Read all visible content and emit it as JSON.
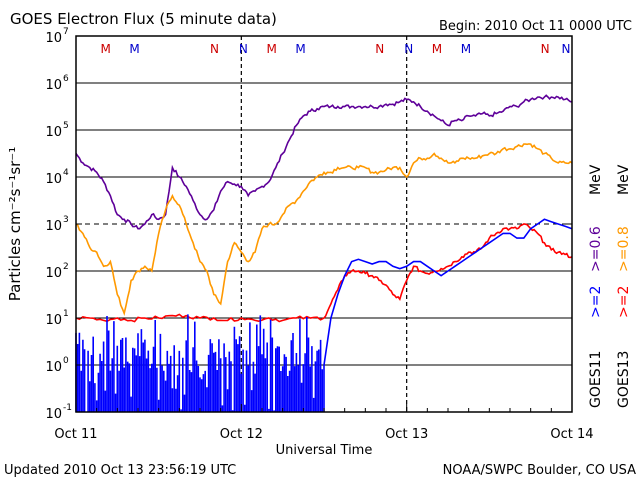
{
  "chart_data": {
    "type": "line",
    "title": "GOES Electron Flux (5 minute data)",
    "begin_label": "Begin: 2010 Oct 11 0000 UTC",
    "xlabel": "Universal Time",
    "ylabel": "Particles cm⁻²s⁻¹sr⁻¹",
    "updated": "Updated 2010 Oct 13 23:56:19 UTC",
    "credit": "NOAA/SWPC Boulder, CO USA",
    "x_unit": "hours since 2010 Oct 11 00:00 UTC",
    "xlim": [
      0,
      72
    ],
    "y_scale": "log",
    "ylim_exp": [
      -1,
      7
    ],
    "x_ticks": [
      {
        "x": 0,
        "label": "Oct 11"
      },
      {
        "x": 24,
        "label": "Oct 12"
      },
      {
        "x": 48,
        "label": "Oct 13"
      },
      {
        "x": 72,
        "label": "Oct 14"
      }
    ],
    "y_ticks": [
      {
        "exp": 7,
        "base": "10",
        "sup": "7"
      },
      {
        "exp": 6,
        "base": "10",
        "sup": "6"
      },
      {
        "exp": 5,
        "base": "10",
        "sup": "5"
      },
      {
        "exp": 4,
        "base": "10",
        "sup": "4"
      },
      {
        "exp": 3,
        "base": "10",
        "sup": "3"
      },
      {
        "exp": 2,
        "base": "10",
        "sup": "2"
      },
      {
        "exp": 1,
        "base": "10",
        "sup": "1"
      },
      {
        "exp": 0,
        "base": "10",
        "sup": "0"
      },
      {
        "exp": -1,
        "base": "10",
        "sup": "-1"
      }
    ],
    "threshold_exp": 3,
    "markers": [
      {
        "x": 4.3,
        "label": "M",
        "color": "#cc0000"
      },
      {
        "x": 8.5,
        "label": "M",
        "color": "#0000cc"
      },
      {
        "x": 20.1,
        "label": "N",
        "color": "#cc0000"
      },
      {
        "x": 24.3,
        "label": "N",
        "color": "#0000cc"
      },
      {
        "x": 28.4,
        "label": "M",
        "color": "#cc0000"
      },
      {
        "x": 32.6,
        "label": "M",
        "color": "#0000cc"
      },
      {
        "x": 44.1,
        "label": "N",
        "color": "#cc0000"
      },
      {
        "x": 48.3,
        "label": "N",
        "color": "#0000cc"
      },
      {
        "x": 52.4,
        "label": "M",
        "color": "#cc0000"
      },
      {
        "x": 56.6,
        "label": "M",
        "color": "#0000cc"
      },
      {
        "x": 68.1,
        "label": "N",
        "color": "#cc0000"
      },
      {
        "x": 72.2,
        "label": "N",
        "color": "#0000cc"
      }
    ],
    "legend": [
      {
        "sat": "GOES11",
        "energy": ">=2",
        "color": "#0000ff"
      },
      {
        "sat": "GOES13",
        "energy": ">=2",
        "color": "#ff0000"
      },
      {
        "sat": "",
        "energy": ">=0.6",
        "color": "#5e0099"
      },
      {
        "sat": "",
        "energy": ">=0.8",
        "color": "#ff9900"
      },
      {
        "sat": "",
        "energy": "MeV",
        "color": "#000000"
      },
      {
        "sat": "",
        "energy": "MeV",
        "color": "#000000"
      }
    ],
    "series": [
      {
        "name": "GOES13 >=0.6 MeV",
        "color": "#5e0099",
        "x": [
          0,
          1,
          2,
          3,
          4,
          5,
          6,
          7,
          8,
          9,
          10,
          11,
          12,
          13,
          14,
          15,
          16,
          17,
          18,
          19,
          20,
          21,
          22,
          23,
          24,
          25,
          26,
          27,
          28,
          29,
          30,
          31,
          32,
          33,
          34,
          35,
          36,
          37,
          38,
          39,
          40,
          41,
          42,
          43,
          44,
          45,
          46,
          47,
          48,
          49,
          50,
          51,
          52,
          53,
          54,
          55,
          56,
          57,
          58,
          59,
          60,
          61,
          62,
          63,
          64,
          65,
          66,
          67,
          68,
          69,
          70,
          71,
          72
        ],
        "y_exp": [
          4.5,
          4.3,
          4.2,
          4.1,
          3.9,
          3.6,
          3.2,
          3.1,
          3.0,
          2.9,
          3.0,
          3.2,
          3.1,
          3.2,
          4.2,
          4.0,
          3.8,
          3.5,
          3.2,
          3.1,
          3.3,
          3.7,
          3.9,
          3.85,
          3.8,
          3.6,
          3.7,
          3.8,
          3.9,
          4.2,
          4.5,
          4.8,
          5.1,
          5.3,
          5.4,
          5.45,
          5.5,
          5.5,
          5.5,
          5.5,
          5.5,
          5.5,
          5.5,
          5.5,
          5.5,
          5.55,
          5.55,
          5.6,
          5.65,
          5.6,
          5.5,
          5.4,
          5.3,
          5.2,
          5.1,
          5.2,
          5.2,
          5.3,
          5.3,
          5.35,
          5.3,
          5.35,
          5.4,
          5.5,
          5.5,
          5.6,
          5.65,
          5.7,
          5.7,
          5.7,
          5.7,
          5.65,
          5.6
        ]
      },
      {
        "name": "GOES13 >=0.8 MeV",
        "color": "#ff9900",
        "x": [
          0,
          1,
          2,
          3,
          4,
          5,
          6,
          7,
          8,
          9,
          10,
          11,
          12,
          13,
          14,
          15,
          16,
          17,
          18,
          19,
          20,
          21,
          22,
          23,
          24,
          25,
          26,
          27,
          28,
          29,
          30,
          31,
          32,
          33,
          34,
          35,
          36,
          37,
          38,
          39,
          40,
          41,
          42,
          43,
          44,
          45,
          46,
          47,
          48,
          49,
          50,
          51,
          52,
          53,
          54,
          55,
          56,
          57,
          58,
          59,
          60,
          61,
          62,
          63,
          64,
          65,
          66,
          67,
          68,
          69,
          70,
          71,
          72
        ],
        "y_exp": [
          3.0,
          2.8,
          2.5,
          2.4,
          2.1,
          2.2,
          1.5,
          1.1,
          1.8,
          2.0,
          2.1,
          2.0,
          2.8,
          3.3,
          3.6,
          3.4,
          3.0,
          2.6,
          2.2,
          2.0,
          1.5,
          1.3,
          2.2,
          2.6,
          2.4,
          2.2,
          2.4,
          2.9,
          3.0,
          3.0,
          3.2,
          3.4,
          3.5,
          3.7,
          3.9,
          4.0,
          4.1,
          4.1,
          4.2,
          4.2,
          4.2,
          4.2,
          4.2,
          4.1,
          4.1,
          4.15,
          4.2,
          4.2,
          4.0,
          4.3,
          4.4,
          4.4,
          4.5,
          4.4,
          4.3,
          4.3,
          4.4,
          4.4,
          4.4,
          4.45,
          4.5,
          4.5,
          4.6,
          4.6,
          4.65,
          4.7,
          4.7,
          4.6,
          4.5,
          4.4,
          4.3,
          4.3,
          4.3
        ]
      },
      {
        "name": "GOES13 >=2 MeV",
        "color": "#ff0000",
        "x": [
          0,
          2,
          4,
          6,
          8,
          10,
          12,
          14,
          16,
          18,
          20,
          22,
          24,
          26,
          28,
          30,
          32,
          34,
          36,
          37,
          38,
          39,
          40,
          41,
          42,
          43,
          44,
          45,
          46,
          47,
          48,
          49,
          50,
          51,
          52,
          53,
          54,
          55,
          56,
          57,
          58,
          59,
          60,
          61,
          62,
          63,
          64,
          65,
          66,
          67,
          68,
          69,
          70,
          71,
          72
        ],
        "y_exp": [
          1.0,
          1.0,
          0.95,
          1.0,
          0.95,
          1.0,
          1.0,
          1.05,
          1.05,
          1.0,
          1.0,
          0.95,
          1.0,
          0.95,
          1.0,
          0.95,
          1.0,
          1.0,
          1.0,
          1.3,
          1.6,
          1.9,
          2.0,
          2.0,
          1.95,
          1.9,
          1.8,
          1.7,
          1.5,
          1.4,
          1.8,
          2.1,
          2.0,
          1.95,
          2.0,
          2.05,
          2.1,
          2.2,
          2.3,
          2.4,
          2.4,
          2.5,
          2.7,
          2.8,
          2.9,
          2.9,
          2.9,
          3.0,
          2.9,
          2.8,
          2.6,
          2.45,
          2.4,
          2.35,
          2.3
        ]
      },
      {
        "name": "GOES11 >=2 MeV",
        "color": "#0000ff",
        "x": [
          0,
          36,
          37,
          38,
          39,
          40,
          41,
          42,
          43,
          44,
          45,
          46,
          47,
          48,
          49,
          50,
          51,
          52,
          53,
          54,
          55,
          56,
          57,
          58,
          59,
          60,
          61,
          62,
          63,
          64,
          65,
          66,
          67,
          68,
          69,
          70,
          71,
          72
        ],
        "y_exp": [
          0.0,
          0.0,
          1.0,
          1.5,
          1.9,
          2.2,
          2.25,
          2.2,
          2.15,
          2.2,
          2.2,
          2.1,
          2.05,
          2.1,
          2.2,
          2.2,
          2.1,
          2.0,
          1.9,
          2.0,
          2.1,
          2.2,
          2.3,
          2.4,
          2.5,
          2.6,
          2.7,
          2.8,
          2.8,
          2.7,
          2.7,
          2.9,
          3.0,
          3.1,
          3.05,
          3.0,
          2.95,
          2.9
        ]
      }
    ],
    "goes11_spike_note": "GOES11 >=2 MeV data prior to ~36h fluctuates rapidly between 10^-1 and 10^1 (spiky noise)"
  }
}
